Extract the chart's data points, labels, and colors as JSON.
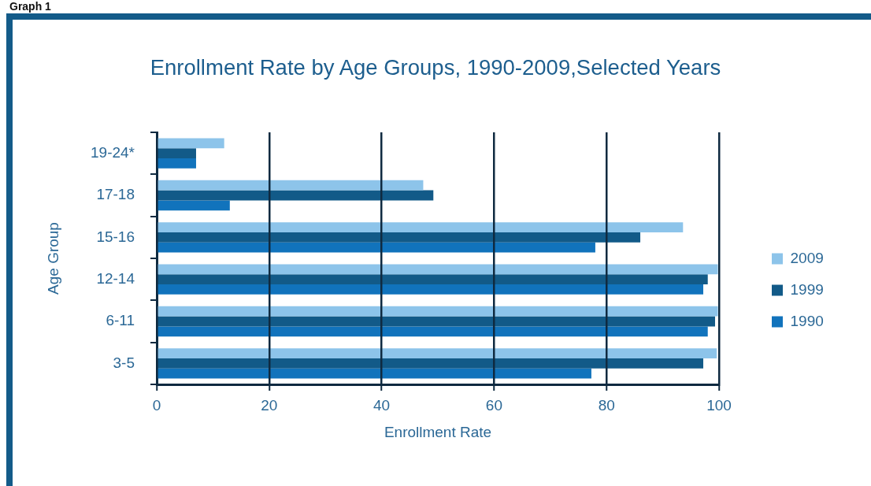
{
  "chart_data": {
    "type": "bar",
    "orientation": "horizontal",
    "title": "Enrollment Rate by Age Groups, 1990-2009,Selected Years",
    "xlabel": "Enrollment Rate",
    "ylabel": "Age Group",
    "annotations": [
      "Graph 1"
    ],
    "categories": [
      "19-24*",
      "17-18",
      "15-16",
      "12-14",
      "6-11",
      "3-5"
    ],
    "series": [
      {
        "name": "2009",
        "color": "#8dc4ea",
        "values": [
          12,
          47.4,
          93.6,
          99.8,
          99.8,
          99.6
        ]
      },
      {
        "name": "1999",
        "color": "#125a88",
        "values": [
          7,
          49.2,
          86,
          98,
          99.3,
          97.2
        ]
      },
      {
        "name": "1990",
        "color": "#1173bc",
        "values": [
          7,
          13,
          78,
          97.2,
          98,
          77.3
        ]
      }
    ],
    "xlim": [
      0,
      100
    ],
    "xticks": [
      0,
      20,
      40,
      60,
      80,
      100
    ],
    "grid": "x",
    "legend": "right"
  }
}
